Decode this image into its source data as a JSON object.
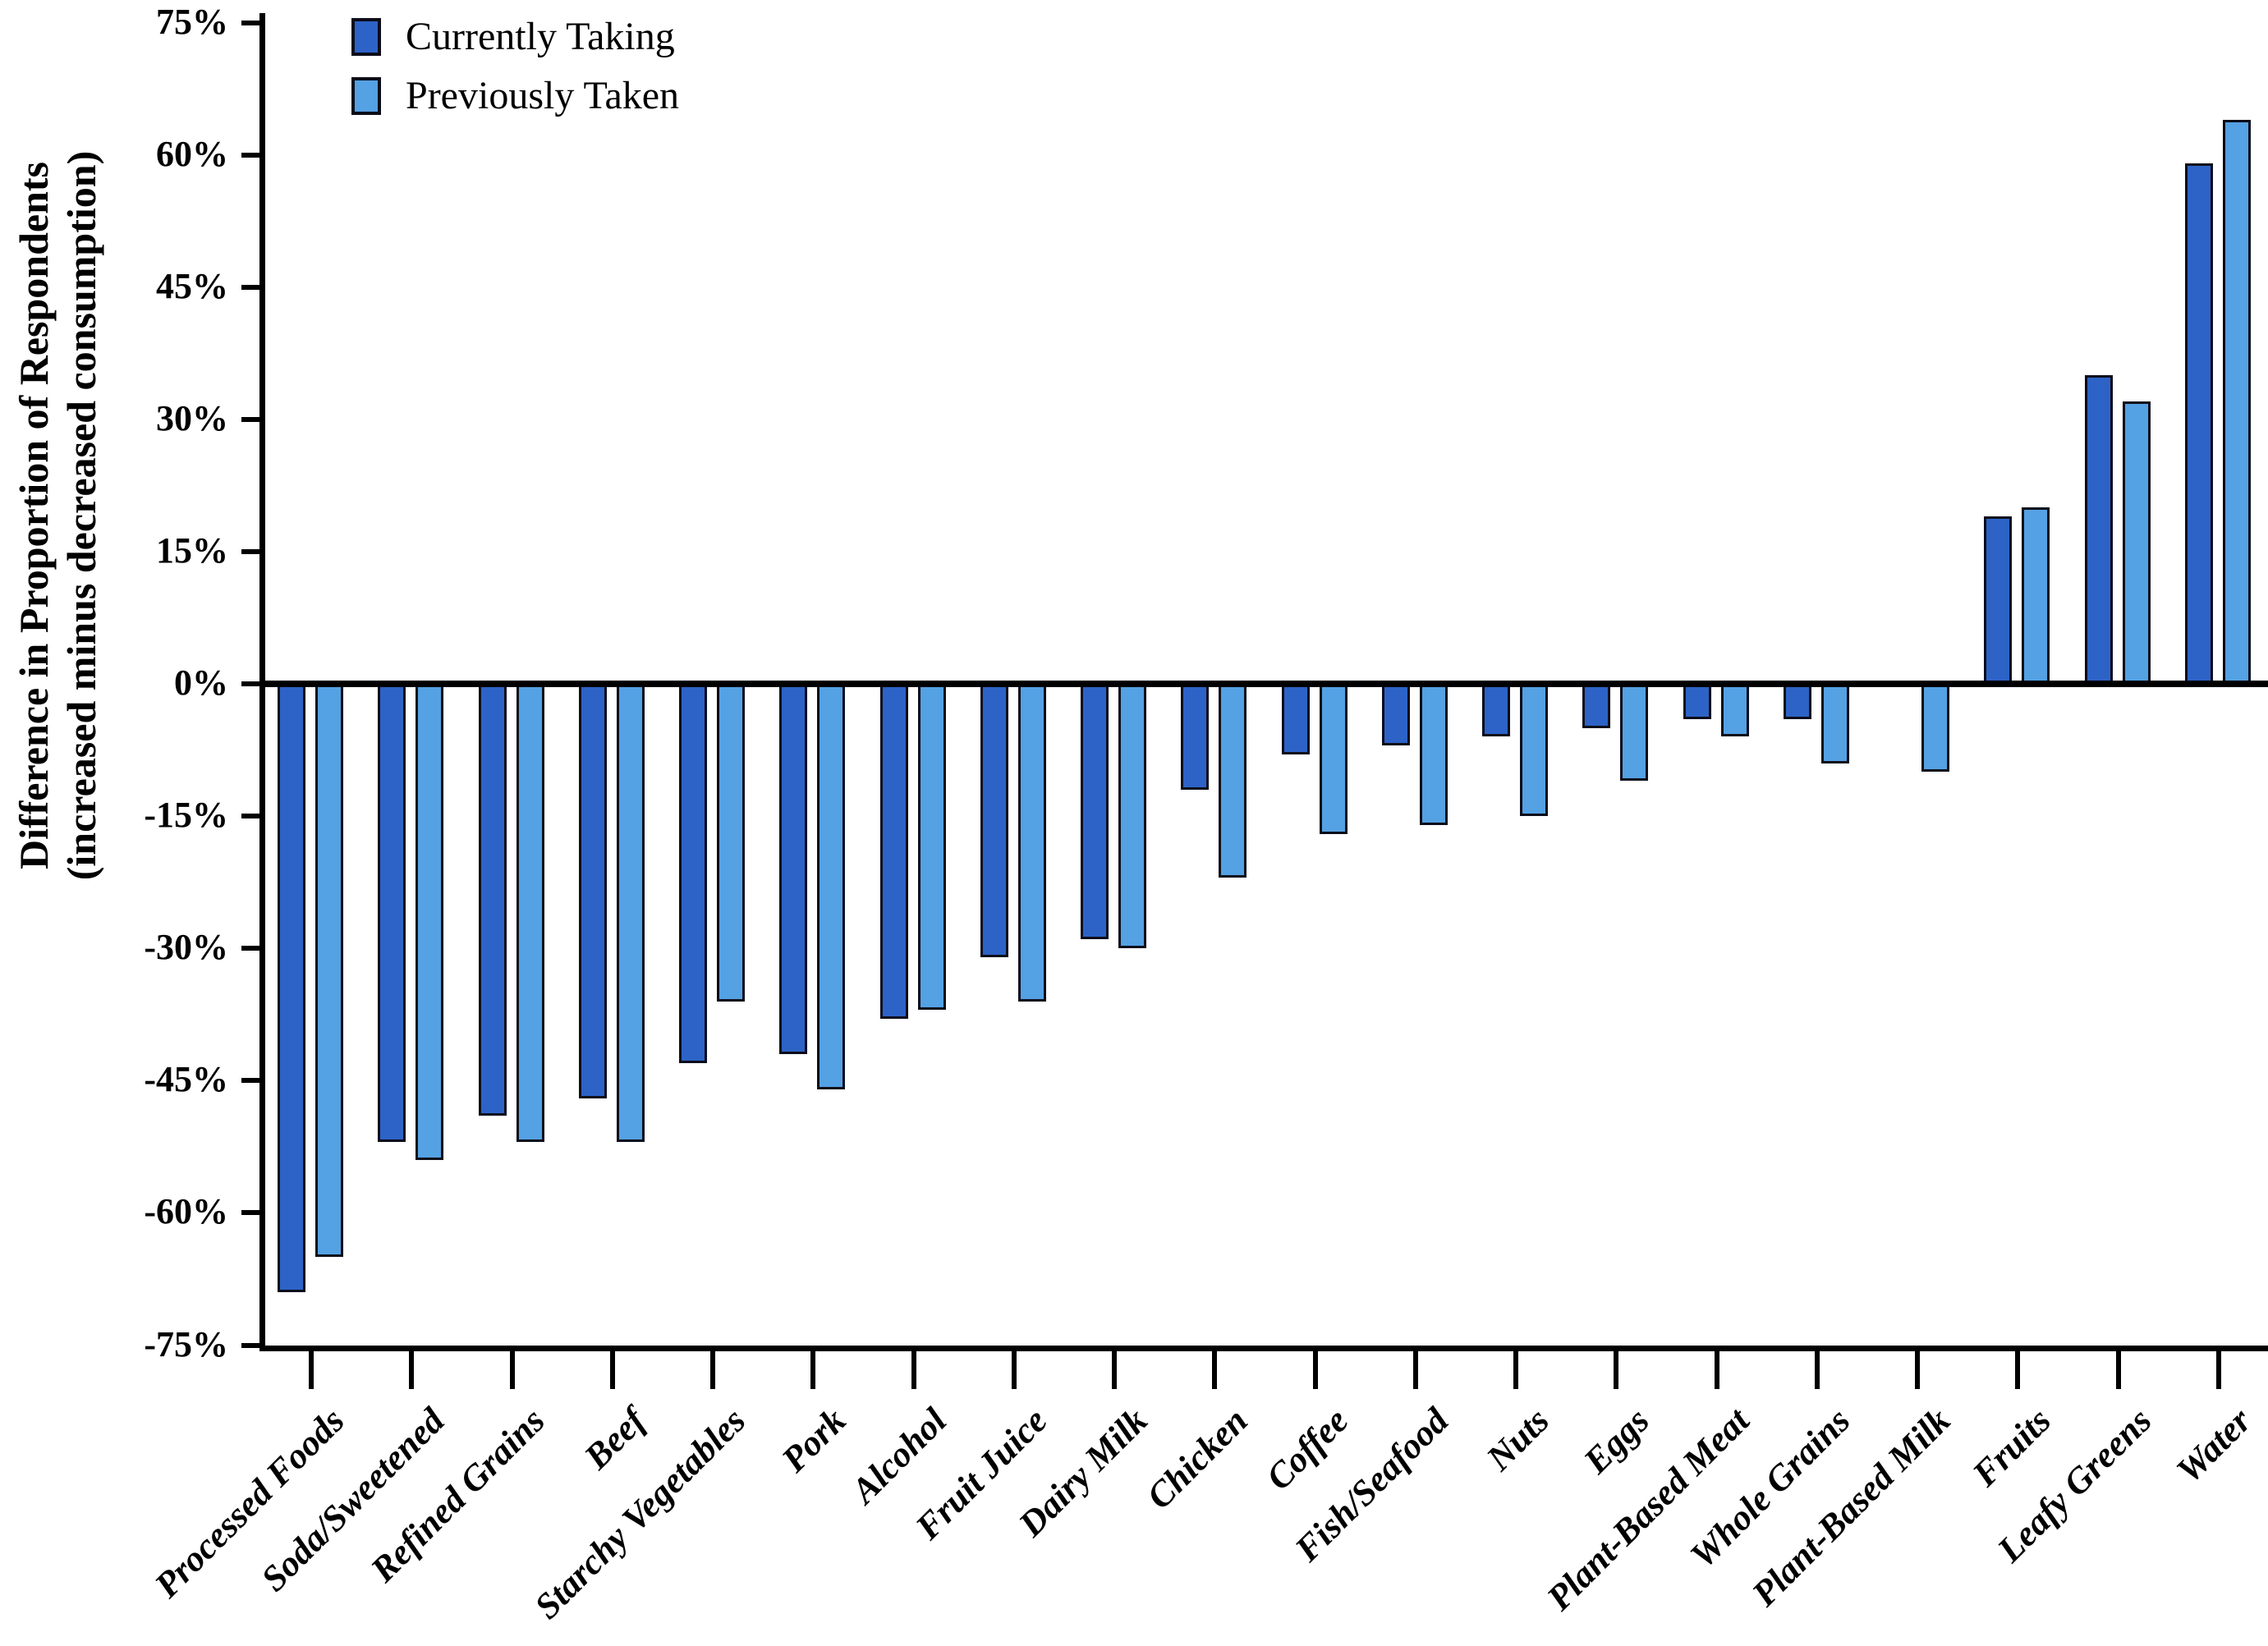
{
  "chart_data": {
    "type": "bar",
    "title": "",
    "categories": [
      "Processed Foods",
      "Soda/Sweetened",
      "Refined Grains",
      "Beef",
      "Starchy Vegetables",
      "Pork",
      "Alcohol",
      "Fruit Juice",
      "Dairy Milk",
      "Chicken",
      "Coffee",
      "Fish/Seafood",
      "Nuts",
      "Eggs",
      "Plant-Based Meat",
      "Whole Grains",
      "Plant-Based Milk",
      "Fruits",
      "Leafy Greens",
      "Water"
    ],
    "series": [
      {
        "name": "Currently Taking",
        "color": "#2d63c7",
        "values": [
          -69,
          -52,
          -49,
          -47,
          -43,
          -42,
          -38,
          -31,
          -29,
          -12,
          -8,
          -7,
          -6,
          -5,
          -4,
          -4,
          0,
          19,
          35,
          59
        ]
      },
      {
        "name": "Previously Taken",
        "color": "#54a1e3",
        "values": [
          -65,
          -54,
          -52,
          -52,
          -36,
          -46,
          -37,
          -36,
          -30,
          -22,
          -17,
          -16,
          -15,
          -11,
          -6,
          -9,
          -10,
          20,
          32,
          64
        ]
      }
    ],
    "ylabel_line1": "Difference in Proportion of Respondents",
    "ylabel_line2": "(increased minus decreased consumption)",
    "xlabel": "",
    "y_ticks": [
      "75%",
      "60%",
      "45%",
      "30%",
      "15%",
      "0%",
      "-15%",
      "-30%",
      "-45%",
      "-60%",
      "-75%"
    ],
    "y_tick_values": [
      75,
      60,
      45,
      30,
      15,
      0,
      -15,
      -30,
      -45,
      -60,
      -75
    ],
    "ylim": [
      -75,
      75
    ],
    "grid": false,
    "legend_position": "top-left",
    "bar_outline_color": "#0d0d1a",
    "axis_color": "#000000",
    "background_color": "#ffffff"
  }
}
